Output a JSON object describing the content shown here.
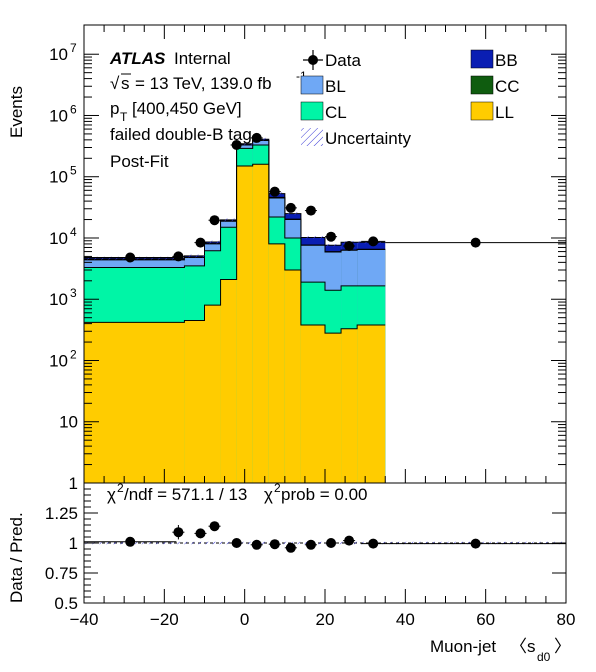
{
  "chart_data": {
    "type": "area",
    "label_block": {
      "atlas": "ATLAS",
      "internal": "Internal",
      "sqrt_s": "s",
      "energy": "= 13 TeV, 139.0 fb",
      "energy_sup": "-1",
      "pt_main": "p",
      "pt_sub": "T",
      "pt_range": "[400,450 GeV]",
      "tag": "failed double-B tag",
      "fit": "Post-Fit"
    },
    "legend": {
      "data": "Data",
      "bl": "BL",
      "cl": "CL",
      "uncertainty": "Uncertainty",
      "bb": "BB",
      "cc": "CC",
      "ll": "LL"
    },
    "colors": {
      "bb": "#0a1eb3",
      "cc": "#0f5c0f",
      "bl": "#6fa8f5",
      "cl": "#00f5a6",
      "ll": "#ffcc00",
      "uncertainty": "#3b3bd6"
    },
    "x_range": [
      -40,
      80
    ],
    "y_range_log": [
      1,
      30000000
    ],
    "bin_edges": [
      -40,
      -20,
      -15,
      -10,
      -6,
      -2,
      2,
      6,
      10,
      14,
      20,
      24,
      28,
      35,
      80
    ],
    "stack": {
      "LL": [
        420,
        450,
        800,
        2100,
        150000,
        160000,
        8000,
        3000,
        380,
        280,
        330,
        380
      ],
      "CL": [
        3300,
        3500,
        6200,
        15000,
        290000,
        330000,
        22000,
        10000,
        1900,
        1400,
        1650,
        1650
      ],
      "BL": [
        4400,
        4800,
        8000,
        18800,
        330000,
        390000,
        45000,
        20000,
        7600,
        5900,
        6300,
        6500
      ],
      "CC": [
        4450,
        4850,
        8100,
        19000,
        332000,
        392000,
        46000,
        20300,
        7700,
        6000,
        6350,
        6550
      ],
      "BB": [
        4700,
        5100,
        8600,
        19800,
        345000,
        410000,
        53000,
        25000,
        10200,
        7600,
        8500,
        8500
      ]
    },
    "stack_bin_edges": [
      -40,
      -15,
      -10,
      -6,
      -2,
      2,
      6,
      10,
      14,
      20,
      24,
      28,
      35,
      80
    ],
    "data_points": {
      "x": [
        -28.5,
        -16.5,
        -11,
        -7.5,
        -2,
        3,
        7.5,
        11.5,
        16.5,
        21.5,
        26,
        32,
        57.5
      ],
      "y": [
        4800,
        5000,
        8400,
        19500,
        330000,
        430000,
        57000,
        31000,
        28000,
        10500,
        7400,
        8800,
        8400
      ],
      "xerr": [
        11.5,
        1.5,
        1.5,
        1.5,
        1.5,
        1.5,
        1.5,
        1.5,
        1.5,
        1.5,
        1.5,
        3,
        22.5
      ]
    },
    "ratio": {
      "x": [
        -28.5,
        -16.5,
        -11,
        -7.5,
        -2,
        3,
        7.5,
        11.5,
        16.5,
        21.5,
        26,
        32,
        57.5
      ],
      "y": [
        1.01,
        1.09,
        1.08,
        1.14,
        1.0,
        0.985,
        0.99,
        0.96,
        0.985,
        1.0,
        1.02,
        0.995,
        0.995
      ],
      "yerr": [
        0.015,
        0.06,
        0.04,
        0.025,
        0.008,
        0.008,
        0.01,
        0.015,
        0.015,
        0.02,
        0.03,
        0.015,
        0.015
      ],
      "stats": "χ²/ndf = 571.1 / 13    χ²prob = 0.00",
      "chi_label": "χ",
      "chi_sup": "2",
      "ndf_text": "/ndf = 571.1 / 13",
      "prob_label": "χ",
      "prob_sup": "2",
      "prob_text": "prob = 0.00",
      "y_range": [
        0.5,
        1.5
      ],
      "y_ticks": [
        "0.5",
        "0.75",
        "1",
        "1.25"
      ]
    },
    "y_ticks_main": [
      "1",
      "10",
      "10",
      "10",
      "10",
      "10",
      "10",
      "10"
    ],
    "y_tick_exps": [
      "",
      "",
      "2",
      "3",
      "4",
      "5",
      "6",
      "7"
    ],
    "x_ticks": [
      "−40",
      "−20",
      "0",
      "20",
      "40",
      "60",
      "80"
    ],
    "ylabel": "Events",
    "ratio_ylabel": "Data / Pred.",
    "xlabel": "Muon-jet",
    "xlabel_sub": "d0",
    "xlabel_s": "s",
    "xlabel_open": "〈",
    "xlabel_close": "〉"
  }
}
